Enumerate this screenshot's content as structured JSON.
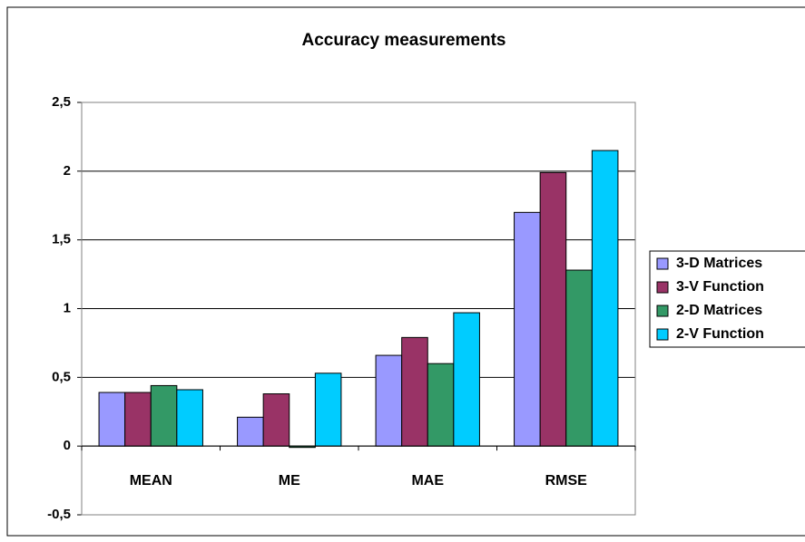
{
  "chart_data": {
    "type": "bar",
    "title": "Accuracy measurements",
    "categories": [
      "MEAN",
      "ME",
      "MAE",
      "RMSE"
    ],
    "series": [
      {
        "name": "3-D Matrices",
        "color": "#9999ff",
        "values": [
          0.39,
          0.21,
          0.66,
          1.7
        ]
      },
      {
        "name": "3-V Function",
        "color": "#993366",
        "values": [
          0.39,
          0.38,
          0.79,
          1.99
        ]
      },
      {
        "name": "2-D Matrices",
        "color": "#339966",
        "values": [
          0.44,
          -0.01,
          0.6,
          1.28
        ]
      },
      {
        "name": "2-V Function",
        "color": "#00ccff",
        "values": [
          0.41,
          0.53,
          0.97,
          2.15
        ]
      }
    ],
    "ylim": [
      -0.5,
      2.5
    ],
    "yticks": [
      {
        "value": -0.5,
        "label": "-0,5"
      },
      0,
      {
        "value": 0.5,
        "label": "0,5"
      },
      1,
      {
        "value": 1.5,
        "label": "1,5"
      },
      2,
      {
        "value": 2.5,
        "label": "2,5"
      }
    ],
    "grid": true,
    "legend": "right"
  }
}
